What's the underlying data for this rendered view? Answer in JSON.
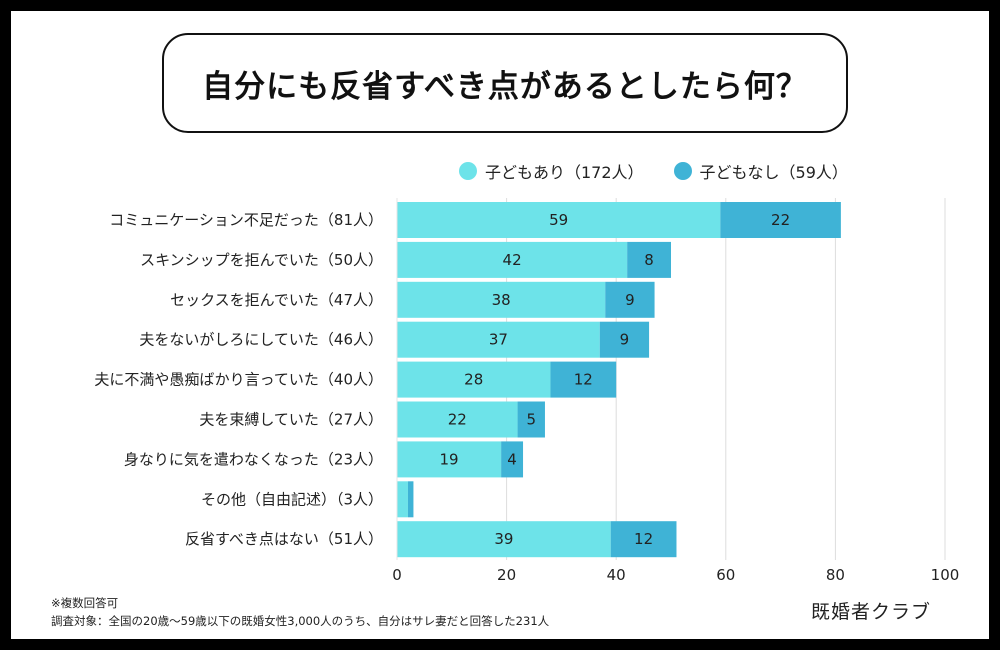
{
  "title": "自分にも反省すべき点があるとしたら何？",
  "colors": {
    "with_children": "#6de3e9",
    "without_children": "#3fb3d6",
    "grid": "#dddddd"
  },
  "chart_data": {
    "type": "bar",
    "orientation": "horizontal",
    "stacked": true,
    "categories": [
      "コミュニケーション不足だった（81人）",
      "スキンシップを拒んでいた（50人）",
      "セックスを拒んでいた（47人）",
      "夫をないがしろにしていた（46人）",
      "夫に不満や愚痴ばかり言っていた（40人）",
      "夫を束縛していた（27人）",
      "身なりに気を遣わなくなった（23人）",
      "その他（自由記述）（3人）",
      "反省すべき点はない（51人）"
    ],
    "series": [
      {
        "name": "子どもあり（172人）",
        "values": [
          59,
          42,
          38,
          37,
          28,
          22,
          19,
          2,
          39
        ],
        "labels": [
          "59",
          "42",
          "38",
          "37",
          "28",
          "22",
          "19",
          "",
          "39"
        ]
      },
      {
        "name": "子どもなし（59人）",
        "values": [
          22,
          8,
          9,
          9,
          12,
          5,
          4,
          1,
          12
        ],
        "labels": [
          "22",
          "8",
          "9",
          "9",
          "12",
          "5",
          "4",
          "",
          "12"
        ]
      }
    ],
    "xlim": [
      0,
      100
    ],
    "xticks": [
      "0",
      "20",
      "40",
      "60",
      "80",
      "100"
    ],
    "grid": "vertical",
    "legend_position": "top"
  },
  "footnote": {
    "line1": "※複数回答可",
    "line2": "調査対象：全国の20歳〜59歳以下の既婚女性3,000人のうち、自分はサレ妻だと回答した231人"
  },
  "brand": "既婚者クラブ"
}
